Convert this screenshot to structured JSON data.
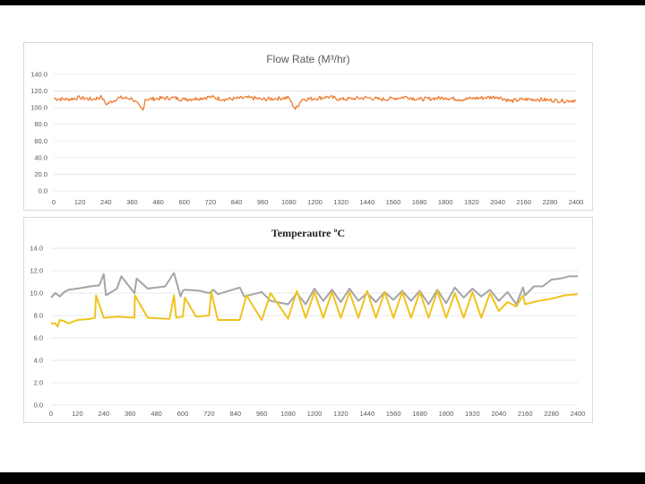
{
  "chart_data": [
    {
      "type": "line",
      "title": "Flow Rate (M³/hr)",
      "ylim": [
        0,
        140
      ],
      "xlim": [
        0,
        2400
      ],
      "y_ticks": [
        "0.0",
        "20.0",
        "40.0",
        "60.0",
        "80.0",
        "100.0",
        "120.0",
        "140.0"
      ],
      "x_ticks": [
        "0",
        "120",
        "240",
        "360",
        "480",
        "600",
        "720",
        "840",
        "960",
        "1080",
        "1200",
        "1320",
        "1440",
        "1560",
        "1680",
        "1800",
        "1920",
        "2040",
        "2160",
        "2280",
        "2400"
      ],
      "grid": "horizontal",
      "series": [
        {
          "color": "#ed7d31",
          "x": [
            0,
            60,
            120,
            180,
            220,
            240,
            300,
            360,
            410,
            420,
            480,
            540,
            600,
            660,
            720,
            780,
            840,
            900,
            960,
            1020,
            1080,
            1110,
            1140,
            1200,
            1260,
            1320,
            1380,
            1440,
            1500,
            1560,
            1620,
            1680,
            1740,
            1800,
            1860,
            1920,
            1980,
            2040,
            2100,
            2160,
            2220,
            2280,
            2340,
            2400
          ],
          "y": [
            111,
            110,
            112,
            110,
            113,
            104,
            112,
            111,
            97,
            110,
            111,
            112,
            110,
            111,
            113,
            110,
            111,
            112,
            110,
            111,
            112,
            98,
            110,
            111,
            113,
            110,
            111,
            112,
            110,
            111,
            113,
            110,
            111,
            112,
            110,
            111,
            112,
            113,
            108,
            110,
            110,
            109,
            108,
            109
          ]
        }
      ]
    },
    {
      "type": "line",
      "title": "Temperautre ºC",
      "ylim": [
        0,
        14
      ],
      "xlim": [
        0,
        2400
      ],
      "y_ticks": [
        "0.0",
        "2.0",
        "4.0",
        "6.0",
        "8.0",
        "10.0",
        "12.0",
        "14.0"
      ],
      "x_ticks": [
        "0",
        "120",
        "240",
        "360",
        "480",
        "600",
        "720",
        "840",
        "960",
        "1080",
        "1200",
        "1320",
        "1440",
        "1560",
        "1680",
        "1800",
        "1920",
        "2040",
        "2160",
        "2280",
        "2400"
      ],
      "grid": "horizontal",
      "series": [
        {
          "color": "#a5a5a5",
          "x": [
            0,
            20,
            40,
            60,
            80,
            120,
            180,
            220,
            240,
            250,
            300,
            320,
            380,
            390,
            440,
            520,
            560,
            590,
            600,
            610,
            680,
            720,
            740,
            760,
            860,
            880,
            960,
            1000,
            1080,
            1120,
            1160,
            1200,
            1240,
            1280,
            1320,
            1360,
            1400,
            1440,
            1480,
            1520,
            1560,
            1600,
            1640,
            1680,
            1720,
            1760,
            1800,
            1840,
            1880,
            1920,
            1960,
            2000,
            2040,
            2080,
            2120,
            2150,
            2160,
            2200,
            2240,
            2280,
            2320,
            2360,
            2400
          ],
          "y": [
            9.6,
            10.0,
            9.7,
            10.1,
            10.3,
            10.4,
            10.6,
            10.7,
            11.7,
            9.8,
            10.4,
            11.5,
            10.0,
            11.3,
            10.4,
            10.6,
            11.8,
            9.7,
            10.2,
            10.3,
            10.2,
            10.0,
            10.3,
            9.9,
            10.5,
            9.7,
            10.1,
            9.3,
            9.0,
            10.0,
            9.0,
            10.4,
            9.3,
            10.3,
            9.2,
            10.4,
            9.3,
            10.0,
            9.2,
            10.1,
            9.4,
            10.2,
            9.3,
            10.2,
            9.0,
            10.3,
            9.1,
            10.5,
            9.6,
            10.4,
            9.7,
            10.3,
            9.3,
            10.1,
            9.0,
            10.5,
            9.8,
            10.6,
            10.6,
            11.2,
            11.3,
            11.5,
            11.5
          ]
        },
        {
          "color": "#f0c31e",
          "x": [
            0,
            20,
            30,
            40,
            60,
            80,
            120,
            180,
            200,
            205,
            240,
            250,
            300,
            380,
            382,
            440,
            540,
            560,
            570,
            600,
            610,
            660,
            720,
            730,
            760,
            860,
            890,
            960,
            1000,
            1080,
            1120,
            1160,
            1200,
            1240,
            1280,
            1320,
            1360,
            1400,
            1440,
            1480,
            1520,
            1560,
            1600,
            1640,
            1680,
            1720,
            1760,
            1800,
            1840,
            1880,
            1920,
            1960,
            2000,
            2040,
            2080,
            2120,
            2150,
            2160,
            2220,
            2280,
            2340,
            2400
          ],
          "y": [
            7.3,
            7.3,
            7.0,
            7.6,
            7.5,
            7.3,
            7.6,
            7.7,
            7.8,
            9.8,
            7.8,
            7.8,
            7.9,
            7.8,
            9.8,
            7.8,
            7.7,
            9.8,
            7.8,
            7.9,
            9.6,
            7.9,
            8.0,
            10.1,
            7.6,
            7.6,
            9.8,
            7.6,
            10.0,
            7.7,
            10.2,
            7.8,
            10.1,
            7.8,
            10.1,
            7.8,
            10.1,
            7.8,
            10.2,
            7.8,
            10.1,
            7.8,
            10.1,
            7.8,
            10.1,
            7.8,
            10.2,
            7.8,
            10.0,
            7.8,
            10.1,
            7.8,
            10.0,
            8.4,
            9.2,
            8.8,
            9.8,
            9.0,
            9.3,
            9.5,
            9.8,
            9.9
          ]
        }
      ]
    }
  ]
}
